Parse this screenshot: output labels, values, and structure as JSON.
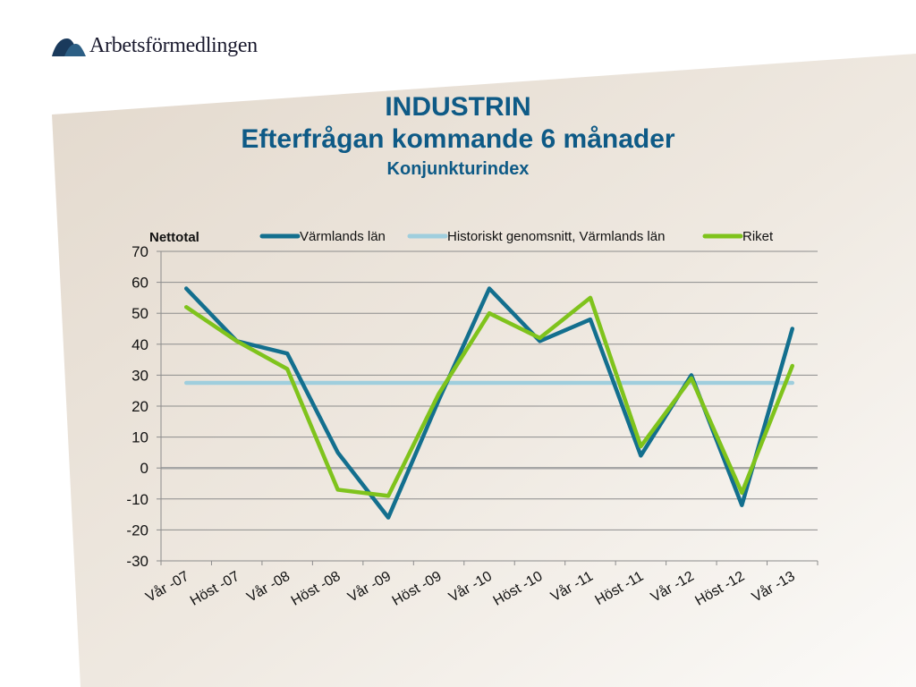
{
  "brand": {
    "name": "Arbetsförmedlingen",
    "color": "#1a3a5c"
  },
  "slide": {
    "title": "INDUSTRIN",
    "subtitle": "Efterfrågan kommande 6 månader",
    "subsubtitle": "Konjunkturindex"
  },
  "chart_data": {
    "type": "line",
    "ylabel": "Nettotal",
    "ylim": [
      -30,
      70
    ],
    "yticks": [
      70,
      60,
      50,
      40,
      30,
      20,
      10,
      0,
      -10,
      -20,
      -30
    ],
    "grid": true,
    "legend": "top",
    "categories": [
      "Vår -07",
      "Höst -07",
      "Vår -08",
      "Höst -08",
      "Vår -09",
      "Höst -09",
      "Vår -10",
      "Höst -10",
      "Vår -11",
      "Höst -11",
      "Vår -12",
      "Höst -12",
      "Vår -13"
    ],
    "series": [
      {
        "name": "Värmlands län",
        "color": "#136f8e",
        "values": [
          58,
          41,
          37,
          5,
          -16,
          22,
          58,
          41,
          48,
          4,
          30,
          -12,
          45
        ]
      },
      {
        "name": "Historiskt genomsnitt, Värmlands län",
        "color": "#9fcedd",
        "values": [
          27.5,
          27.5,
          27.5,
          27.5,
          27.5,
          27.5,
          27.5,
          27.5,
          27.5,
          27.5,
          27.5,
          27.5,
          27.5
        ]
      },
      {
        "name": "Riket",
        "color": "#7fc31c",
        "values": [
          52,
          41,
          32,
          -7,
          -9,
          24,
          50,
          42,
          55,
          7,
          29,
          -8,
          33
        ]
      }
    ]
  }
}
